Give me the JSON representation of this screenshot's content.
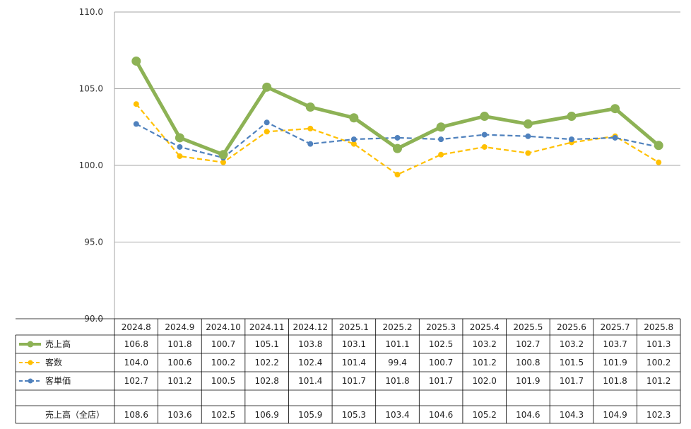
{
  "chart_data": {
    "type": "line",
    "categories": [
      "2024.8",
      "2024.9",
      "2024.10",
      "2024.11",
      "2024.12",
      "2025.1",
      "2025.2",
      "2025.3",
      "2025.4",
      "2025.5",
      "2025.6",
      "2025.7",
      "2025.8"
    ],
    "ylim": [
      90.0,
      110.0
    ],
    "yticks": [
      "110.0",
      "105.0",
      "100.0",
      "95.0",
      "90.0"
    ],
    "grid": true,
    "series": [
      {
        "name": "売上高",
        "color": "#8db255",
        "style": "solid",
        "values": [
          106.8,
          101.8,
          100.7,
          105.1,
          103.8,
          103.1,
          101.1,
          102.5,
          103.2,
          102.7,
          103.2,
          103.7,
          101.3
        ],
        "labels": [
          "106.8",
          "101.8",
          "100.7",
          "105.1",
          "103.8",
          "103.1",
          "101.1",
          "102.5",
          "103.2",
          "102.7",
          "103.2",
          "103.7",
          "101.3"
        ]
      },
      {
        "name": "客数",
        "color": "#ffc000",
        "style": "dashed",
        "values": [
          104.0,
          100.6,
          100.2,
          102.2,
          102.4,
          101.4,
          99.4,
          100.7,
          101.2,
          100.8,
          101.5,
          101.9,
          100.2
        ],
        "labels": [
          "104.0",
          "100.6",
          "100.2",
          "102.2",
          "102.4",
          "101.4",
          "99.4",
          "100.7",
          "101.2",
          "100.8",
          "101.5",
          "101.9",
          "100.2"
        ]
      },
      {
        "name": "客単価",
        "color": "#4f81bd",
        "style": "dashed",
        "values": [
          102.7,
          101.2,
          100.5,
          102.8,
          101.4,
          101.7,
          101.8,
          101.7,
          102.0,
          101.9,
          101.7,
          101.8,
          101.2
        ],
        "labels": [
          "102.7",
          "101.2",
          "100.5",
          "102.8",
          "101.4",
          "101.7",
          "101.8",
          "101.7",
          "102.0",
          "101.9",
          "101.7",
          "101.8",
          "101.2"
        ]
      }
    ],
    "extra_row": {
      "name": "売上高（全店）",
      "labels": [
        "108.6",
        "103.6",
        "102.5",
        "106.9",
        "105.9",
        "105.3",
        "103.4",
        "104.6",
        "105.2",
        "104.6",
        "104.3",
        "104.9",
        "102.3"
      ]
    }
  }
}
